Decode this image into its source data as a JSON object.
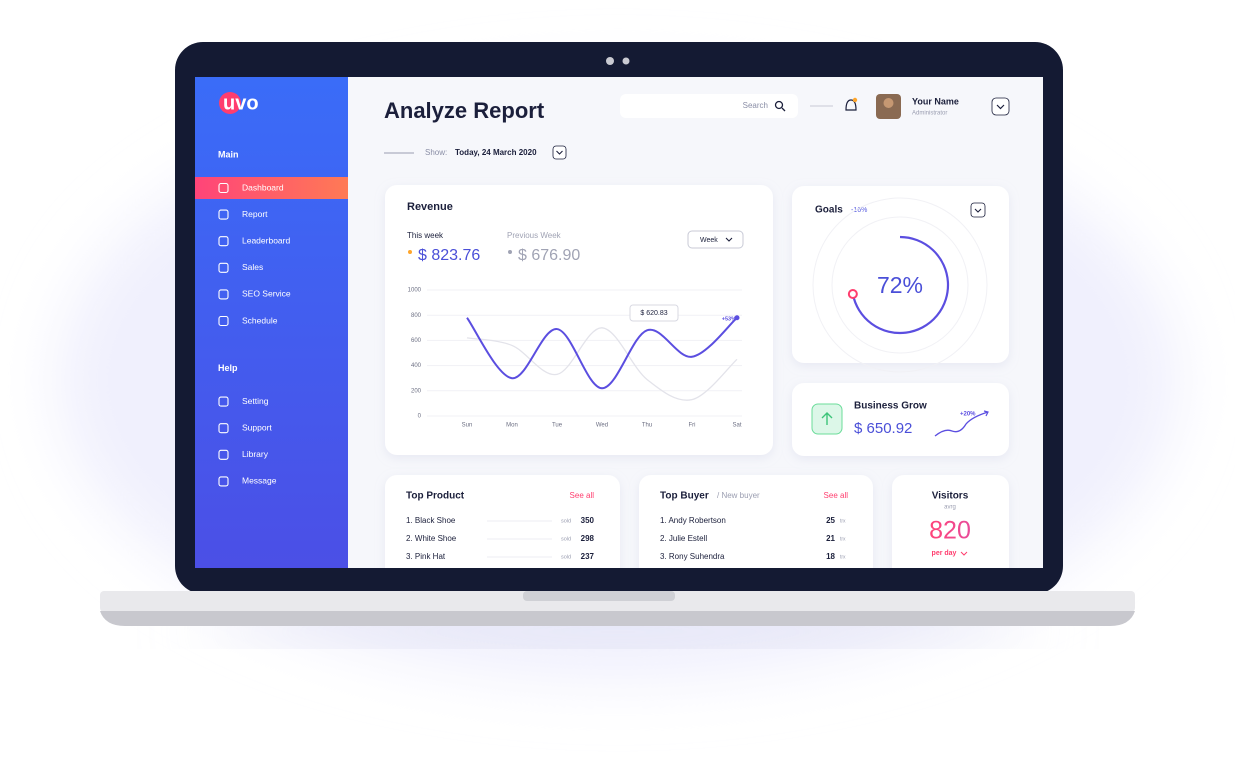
{
  "brand": "uvo",
  "sidebar": {
    "sections": [
      {
        "title": "Main",
        "items": [
          "Dashboard",
          "Report",
          "Leaderboard",
          "Sales",
          "SEO Service",
          "Schedule"
        ]
      },
      {
        "title": "Help",
        "items": [
          "Setting",
          "Support",
          "Library",
          "Message"
        ]
      }
    ]
  },
  "header": {
    "title": "Analyze Report",
    "search": "Search",
    "user_name": "Your Name",
    "user_role": "Administrator",
    "show_label": "Show:",
    "date": "Today, 24 March 2020"
  },
  "chart_data": {
    "type": "line",
    "title": "Revenue",
    "period": "Week",
    "categories": [
      "Sun",
      "Mon",
      "Tue",
      "Wed",
      "Thu",
      "Fri",
      "Sat"
    ],
    "series": [
      {
        "name": "This week",
        "total": "$ 823.76",
        "color": "#5b4ee0",
        "values": [
          780,
          300,
          690,
          220,
          680,
          470,
          780
        ]
      },
      {
        "name": "Previous Week",
        "total": "$ 676.90",
        "color": "#e3e3ea",
        "values": [
          620,
          560,
          330,
          700,
          290,
          130,
          450
        ]
      }
    ],
    "ylim": [
      0,
      1000
    ],
    "yticks": [
      0,
      200,
      400,
      600,
      800,
      1000
    ],
    "grid": true,
    "annotations": [
      "$ 620.83",
      "+53%"
    ]
  },
  "goals": {
    "title": "Goals",
    "change": "-16%",
    "percent": 72,
    "percent_label": "72%"
  },
  "business_grow": {
    "title": "Business Grow",
    "value": "$ 650.92",
    "change": "+20%"
  },
  "top_product": {
    "title": "Top Product",
    "link": "See all",
    "rows": [
      [
        "1. Black Shoe",
        "sold",
        "350"
      ],
      [
        "2. White Shoe",
        "sold",
        "298"
      ],
      [
        "3. Pink Hat",
        "sold",
        "237"
      ]
    ]
  },
  "top_buyer": {
    "title": "Top Buyer",
    "subtitle": "/ New buyer",
    "link": "See all",
    "rows": [
      [
        "1. Andy Robertson",
        "25",
        "trx"
      ],
      [
        "2. Julie Estell",
        "21",
        "trx"
      ],
      [
        "3. Rony Suhendra",
        "18",
        "trx"
      ]
    ]
  },
  "visitors": {
    "title": "Visitors",
    "subtitle": "avrg",
    "value": "820",
    "unit": "per day"
  }
}
